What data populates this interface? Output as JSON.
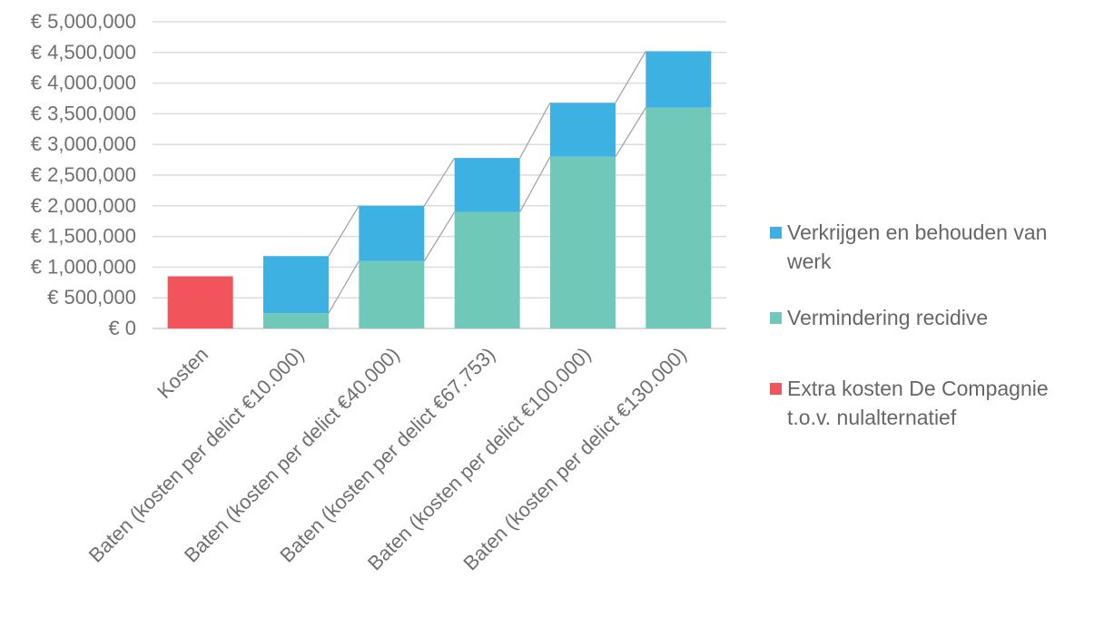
{
  "chart_data": {
    "type": "bar",
    "stacked": true,
    "categories": [
      "Kosten",
      "Baten (kosten per delict €10.000)",
      "Baten (kosten per delict €40.000)",
      "Baten (kosten per delict €67.753)",
      "Baten (kosten per delict €100.000)",
      "Baten (kosten per delict €130.000)"
    ],
    "series": [
      {
        "name": "Extra kosten De Compagnie t.o.v. nulalternatief",
        "color": "#f2545b",
        "values": [
          850000,
          0,
          0,
          0,
          0,
          0
        ]
      },
      {
        "name": "Vermindering recidive",
        "color": "#6fc8b8",
        "values": [
          0,
          250000,
          1100000,
          1900000,
          2800000,
          3600000
        ]
      },
      {
        "name": "Verkrijgen en behouden van werk",
        "color": "#3eb1e3",
        "values": [
          0,
          930000,
          900000,
          880000,
          880000,
          920000
        ]
      }
    ],
    "legend_order": [
      2,
      1,
      0
    ],
    "yticks": [
      "€ 5,000,000",
      "€ 4,500,000",
      "€ 4,000,000",
      "€ 3,500,000",
      "€ 3,000,000",
      "€ 2,500,000",
      "€ 2,000,000",
      "€ 1,500,000",
      "€ 1,000,000",
      "€ 500,000",
      "€ 0"
    ],
    "ylim": [
      0,
      5000000
    ],
    "grid": true,
    "legend_position": "right",
    "connector_lines": true
  }
}
